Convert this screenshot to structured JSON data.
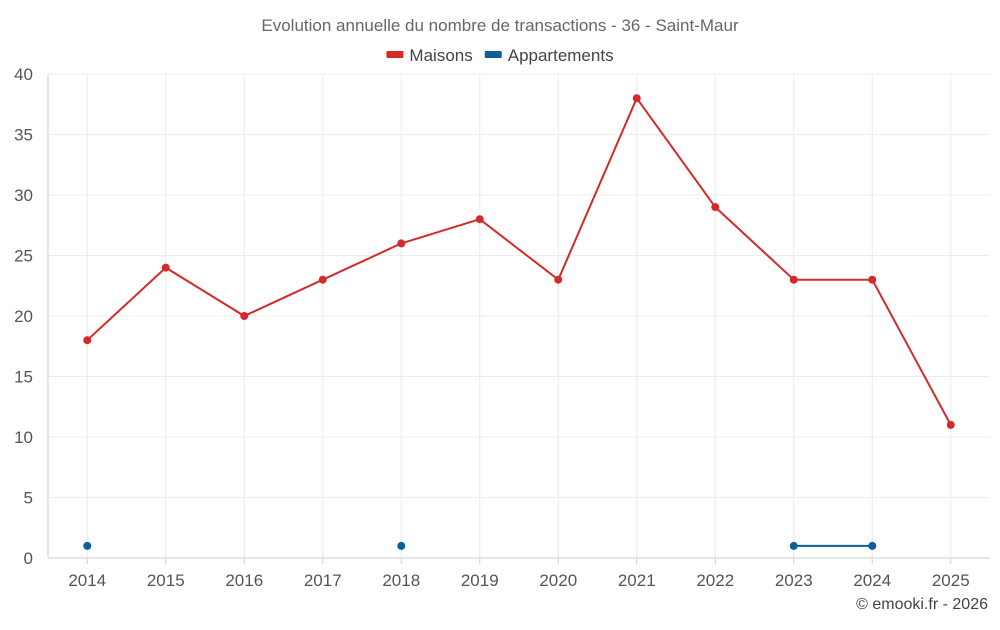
{
  "chart_data": {
    "type": "line",
    "title": "Evolution annuelle du nombre de transactions - 36 - Saint-Maur",
    "categories": [
      "2014",
      "2015",
      "2016",
      "2017",
      "2018",
      "2019",
      "2020",
      "2021",
      "2022",
      "2023",
      "2024",
      "2025"
    ],
    "series": [
      {
        "name": "Maisons",
        "color": "#d42a2a",
        "values": [
          18,
          24,
          20,
          23,
          26,
          28,
          23,
          38,
          29,
          23,
          23,
          11
        ]
      },
      {
        "name": "Appartements",
        "color": "#0d5f97",
        "values": [
          1,
          null,
          null,
          null,
          1,
          null,
          null,
          null,
          null,
          1,
          1,
          null
        ]
      }
    ],
    "y_ticks": [
      0,
      5,
      10,
      15,
      20,
      25,
      30,
      35,
      40
    ],
    "ylim": [
      0,
      40
    ],
    "xlabel": "",
    "ylabel": "",
    "grid": true,
    "legend_position": "top-center",
    "credit": "© emooki.fr - 2026"
  }
}
